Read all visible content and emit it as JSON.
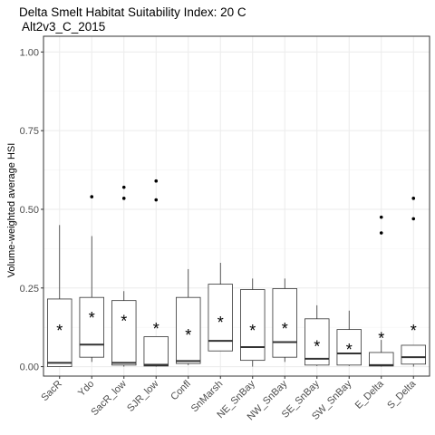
{
  "chart_data": {
    "type": "box",
    "title": "Delta Smelt Habitat Suitability Index: 20 C",
    "subtitle": "Alt2v3_C_2015",
    "xlabel": "",
    "ylabel": "Volume-weighted average HSI",
    "ylim": [
      -0.03,
      1.05
    ],
    "yticks": [
      0.0,
      0.25,
      0.5,
      0.75,
      1.0
    ],
    "ytick_labels": [
      "0.00",
      "0.25",
      "0.50",
      "0.75",
      "1.00"
    ],
    "grid": true,
    "legend": "none",
    "categories": [
      "SacR",
      "Ydo",
      "SacR_low",
      "SJR_low",
      "Confl",
      "SnMarsh",
      "NE_SnBay",
      "NW_SnBay",
      "SE_SnBay",
      "SW_SnBay",
      "E_Delta",
      "S_Delta"
    ],
    "boxes": [
      {
        "q1": 0.0,
        "median": 0.012,
        "q3": 0.215,
        "whisker_low": 0.0,
        "whisker_high": 0.45,
        "mean": 0.12,
        "outliers": []
      },
      {
        "q1": 0.03,
        "median": 0.07,
        "q3": 0.22,
        "whisker_low": 0.015,
        "whisker_high": 0.415,
        "mean": 0.16,
        "outliers": [
          0.54
        ]
      },
      {
        "q1": 0.005,
        "median": 0.012,
        "q3": 0.21,
        "whisker_low": 0.0,
        "whisker_high": 0.24,
        "mean": 0.15,
        "outliers": [
          0.535,
          0.57
        ]
      },
      {
        "q1": 0.002,
        "median": 0.006,
        "q3": 0.095,
        "whisker_low": 0.0,
        "whisker_high": 0.095,
        "mean": 0.125,
        "outliers": [
          0.53,
          0.59
        ]
      },
      {
        "q1": 0.01,
        "median": 0.018,
        "q3": 0.22,
        "whisker_low": 0.005,
        "whisker_high": 0.31,
        "mean": 0.105,
        "outliers": []
      },
      {
        "q1": 0.05,
        "median": 0.082,
        "q3": 0.262,
        "whisker_low": 0.05,
        "whisker_high": 0.33,
        "mean": 0.145,
        "outliers": []
      },
      {
        "q1": 0.02,
        "median": 0.062,
        "q3": 0.245,
        "whisker_low": 0.0,
        "whisker_high": 0.28,
        "mean": 0.12,
        "outliers": []
      },
      {
        "q1": 0.03,
        "median": 0.078,
        "q3": 0.248,
        "whisker_low": 0.015,
        "whisker_high": 0.28,
        "mean": 0.125,
        "outliers": []
      },
      {
        "q1": 0.005,
        "median": 0.025,
        "q3": 0.152,
        "whisker_low": 0.002,
        "whisker_high": 0.195,
        "mean": 0.07,
        "outliers": []
      },
      {
        "q1": 0.005,
        "median": 0.042,
        "q3": 0.118,
        "whisker_low": 0.002,
        "whisker_high": 0.178,
        "mean": 0.06,
        "outliers": []
      },
      {
        "q1": 0.002,
        "median": 0.005,
        "q3": 0.045,
        "whisker_low": 0.0,
        "whisker_high": 0.085,
        "mean": 0.095,
        "outliers": [
          0.425,
          0.475
        ]
      },
      {
        "q1": 0.008,
        "median": 0.03,
        "q3": 0.068,
        "whisker_low": 0.0,
        "whisker_high": 0.068,
        "mean": 0.12,
        "outliers": [
          0.47,
          0.535
        ]
      }
    ],
    "mean_marker": "*",
    "colors": {
      "panel_border": "#333333",
      "grid_major": "#ebebeb",
      "grid_minor": "#f5f5f5",
      "box_line": "#333333",
      "box_fill": "#ffffff",
      "tick_label": "#4d4d4d"
    }
  }
}
